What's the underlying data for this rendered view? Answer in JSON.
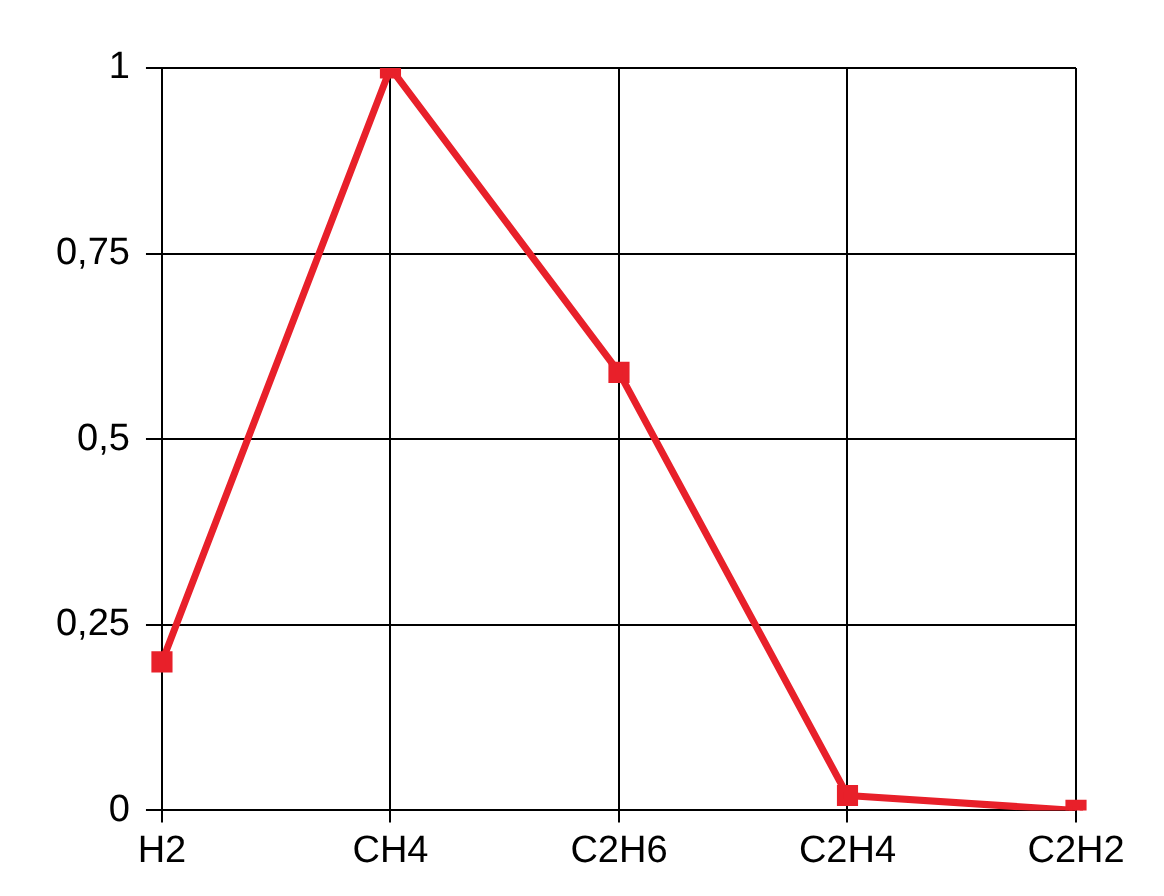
{
  "chart_data": {
    "type": "line",
    "categories": [
      "H2",
      "CH4",
      "C2H6",
      "C2H4",
      "C2H2"
    ],
    "series": [
      {
        "color": "#e8202a",
        "values": [
          0.2,
          1,
          0.59,
          0.02,
          0
        ]
      }
    ],
    "ylim": [
      0,
      1
    ],
    "yticks": [
      0,
      {
        "value": 0.25,
        "label": "0,25"
      },
      {
        "value": 0.5,
        "label": "0,5"
      },
      {
        "value": 0.75,
        "label": "0,75"
      },
      1
    ],
    "grid": true,
    "legend": false,
    "marker": "square",
    "line_style": "solid"
  }
}
